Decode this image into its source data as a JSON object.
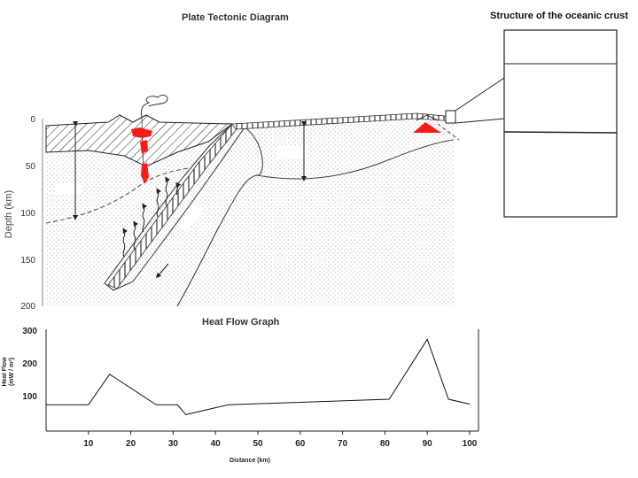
{
  "diagram": {
    "title": "Plate Tectonic Diagram",
    "depth_axis_label": "Depth (km)",
    "depth_ticks": [
      "0",
      "50",
      "100",
      "150",
      "200"
    ]
  },
  "crust": {
    "title": "Structure of the oceanic crust"
  },
  "heat_flow": {
    "title": "Heat Flow Graph",
    "y_axis_label_line1": "Heat Flow",
    "y_axis_label_line2": "(mW / m²)",
    "x_axis_label": "Distance (km)"
  },
  "colors": {
    "magma": "#ff1a1a",
    "line": "#222222",
    "stipple": "#9a9a9a"
  },
  "chart_data": {
    "type": "line",
    "title": "Heat Flow Graph",
    "xlabel": "Distance (km)",
    "ylabel": "Heat Flow (mW / m²)",
    "xlim": [
      0,
      100
    ],
    "ylim": [
      0,
      300
    ],
    "x_ticks": [
      "10",
      "20",
      "30",
      "40",
      "50",
      "60",
      "70",
      "80",
      "90",
      "100"
    ],
    "y_ticks": [
      "100",
      "200",
      "300"
    ],
    "grid": false,
    "series": [
      {
        "x": [
          0,
          10,
          15,
          26,
          31,
          33,
          43,
          81,
          90,
          95,
          100
        ],
        "values": [
          75,
          75,
          168,
          75,
          75,
          45,
          75,
          92,
          275,
          92,
          77
        ]
      }
    ]
  }
}
